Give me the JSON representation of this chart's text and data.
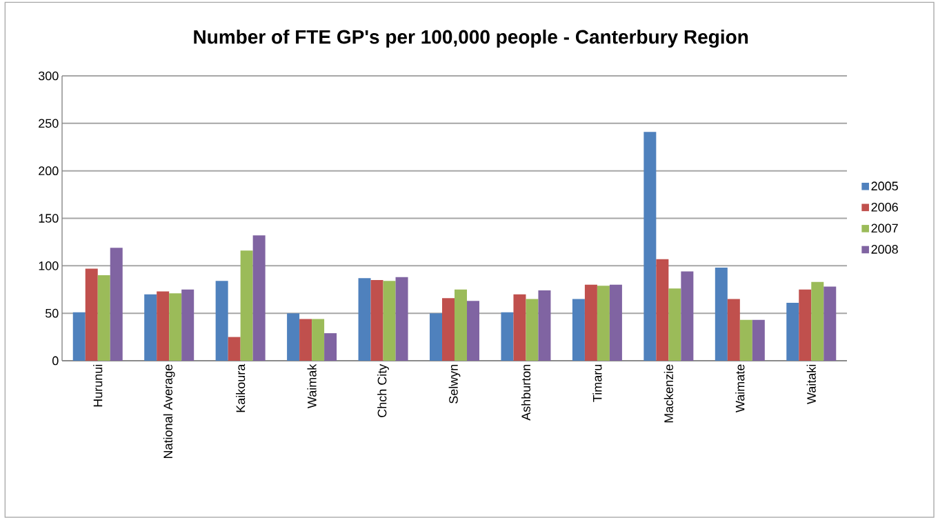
{
  "chart_data": {
    "type": "bar",
    "title": "Number of FTE GP's per 100,000 people - Canterbury Region",
    "categories": [
      "Hurunui",
      "National Average",
      "Kaikoura",
      "Waimak",
      "Chch City",
      "Selwyn",
      "Ashburton",
      "Timaru",
      "Mackenzie",
      "Waimate",
      "Waitaki"
    ],
    "series": [
      {
        "name": "2005",
        "color": "#4f81bd",
        "values": [
          51,
          70,
          84,
          50,
          87,
          50,
          51,
          65,
          241,
          98,
          61
        ]
      },
      {
        "name": "2006",
        "color": "#c0504d",
        "values": [
          97,
          73,
          25,
          44,
          85,
          66,
          70,
          80,
          107,
          65,
          75
        ]
      },
      {
        "name": "2007",
        "color": "#9bbb59",
        "values": [
          90,
          71,
          116,
          44,
          84,
          75,
          65,
          79,
          76,
          43,
          83
        ]
      },
      {
        "name": "2008",
        "color": "#8064a2",
        "values": [
          119,
          75,
          132,
          29,
          88,
          63,
          74,
          80,
          94,
          43,
          78
        ]
      }
    ],
    "ylim": [
      0,
      300
    ],
    "yticks": [
      0,
      50,
      100,
      150,
      200,
      250,
      300
    ],
    "grid": "y",
    "legend": "right"
  }
}
